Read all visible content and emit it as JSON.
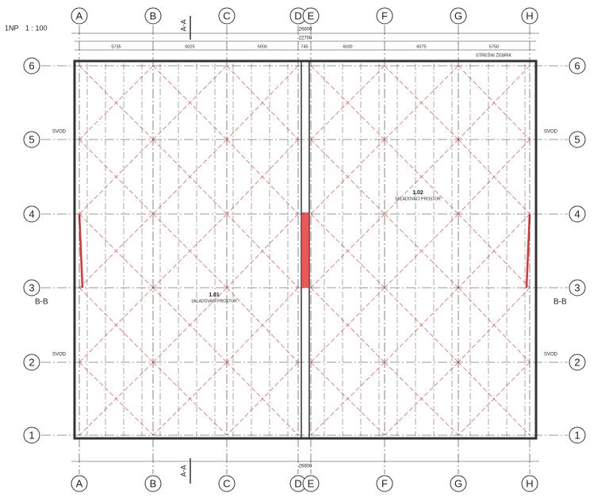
{
  "header": {
    "title": "1NP",
    "scale": "1 : 100"
  },
  "grid_columns": [
    "A",
    "B",
    "C",
    "D",
    "E",
    "F",
    "G",
    "H"
  ],
  "grid_rows": [
    "6",
    "5",
    "4",
    "3",
    "2",
    "1"
  ],
  "sections": [
    "A-A",
    "B-B"
  ],
  "dimensions": {
    "overall": "26800",
    "inner": "22700",
    "top_chain": [
      "5735",
      "6025",
      "6000",
      "745",
      "6000",
      "6075",
      "5750"
    ]
  },
  "rooms": [
    {
      "number": "1.01",
      "name": "SKLADOVACÍ PROSTOR"
    },
    {
      "number": "1.02",
      "name": "SKLADOVACÍ PROSTOR"
    }
  ],
  "notes": {
    "gutter": "SVOD",
    "ladder": "STŘEŠNÍ ŽEBŘÍK"
  }
}
